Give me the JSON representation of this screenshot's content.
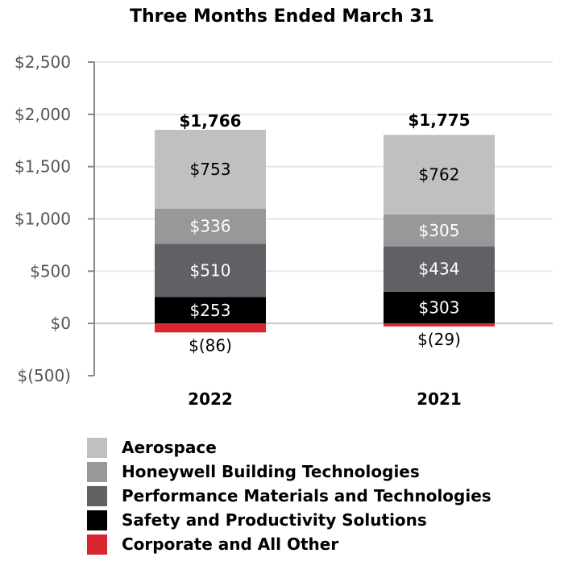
{
  "chart_data": {
    "type": "bar",
    "stacked": true,
    "title": "Three Months Ended March 31",
    "categories": [
      "2022",
      "2021"
    ],
    "series": [
      {
        "name": "Safety and Productivity Solutions",
        "values": [
          253,
          303
        ],
        "labels": [
          "$253",
          "$303"
        ],
        "color": "#000000",
        "label_color": "#ffffff"
      },
      {
        "name": "Performance Materials and Technologies",
        "values": [
          510,
          434
        ],
        "labels": [
          "$510",
          "$434"
        ],
        "color": "#5f6164",
        "label_color": "#ffffff"
      },
      {
        "name": "Honeywell Building Technologies",
        "values": [
          336,
          305
        ],
        "labels": [
          "$336",
          "$305"
        ],
        "color": "#979899",
        "label_color": "#ffffff"
      },
      {
        "name": "Aerospace",
        "values": [
          753,
          762
        ],
        "labels": [
          "$753",
          "$762"
        ],
        "color": "#bfc0c2",
        "label_color": "#000000"
      },
      {
        "name": "Corporate and All Other",
        "values": [
          -86,
          -29
        ],
        "labels": [
          "$(86)",
          "$(29)"
        ],
        "color": "#d92530",
        "label_color": "#000000"
      }
    ],
    "totals": [
      1766,
      1775
    ],
    "total_labels": [
      "$1,766",
      "$1,775"
    ],
    "ylim": [
      -500,
      2500
    ],
    "yticks": [
      -500,
      0,
      500,
      1000,
      1500,
      2000,
      2500
    ],
    "ytick_labels": [
      "$(500)",
      "$0",
      "$500",
      "$1,000",
      "$1,500",
      "$2,000",
      "$2,500"
    ],
    "grid": true,
    "legend_position": "bottom",
    "legend_order": [
      "Aerospace",
      "Honeywell Building Technologies",
      "Performance Materials and Technologies",
      "Safety and Productivity Solutions",
      "Corporate and All Other"
    ]
  }
}
